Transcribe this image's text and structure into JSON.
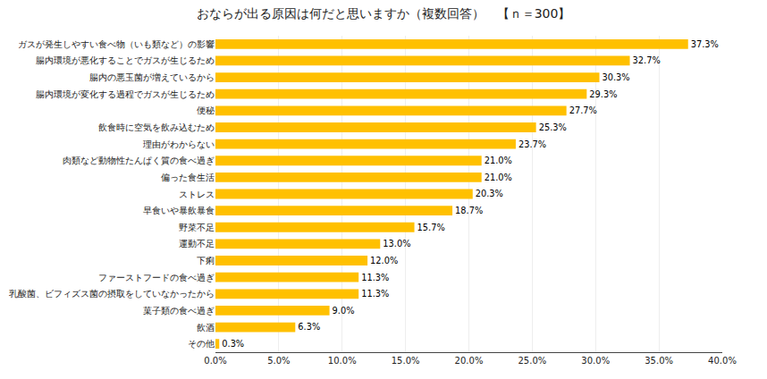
{
  "chart_data": {
    "type": "bar",
    "orientation": "horizontal",
    "title": "おならが出る原因は何だと思いますか（複数回答）　【ｎ＝300】",
    "categories": [
      "ガスが発生しやすい食べ物（いも類など）の影響",
      "腸内環境が悪化することでガスが生じるため",
      "腸内の悪玉菌が増えているから",
      "腸内環境が変化する過程でガスが生じるため",
      "便秘",
      "飲食時に空気を飲み込むため",
      "理由がわからない",
      "肉類など動物性たんぱく質の食べ過ぎ",
      "偏った食生活",
      "ストレス",
      "早食いや暴飲暴食",
      "野菜不足",
      "運動不足",
      "下痢",
      "ファーストフードの食べ過ぎ",
      "乳酸菌、ビフィズス菌の摂取をしていなかったから",
      "菓子類の食べ過ぎ",
      "飲酒",
      "その他"
    ],
    "values": [
      37.3,
      32.7,
      30.3,
      29.3,
      27.7,
      25.3,
      23.7,
      21.0,
      21.0,
      20.3,
      18.7,
      15.7,
      13.0,
      12.0,
      11.3,
      11.3,
      9.0,
      6.3,
      0.3
    ],
    "value_labels": [
      "37.3%",
      "32.7%",
      "30.3%",
      "29.3%",
      "27.7%",
      "25.3%",
      "23.7%",
      "21.0%",
      "21.0%",
      "20.3%",
      "18.7%",
      "15.7%",
      "13.0%",
      "12.0%",
      "11.3%",
      "11.3%",
      "9.0%",
      "6.3%",
      "0.3%"
    ],
    "data_labels": true,
    "color": "#FFC000",
    "xlim": [
      0,
      40
    ],
    "xticks": [
      {
        "value": 0,
        "label": "0.0%"
      },
      {
        "value": 5,
        "label": "5.0%"
      },
      {
        "value": 10,
        "label": "10.0%"
      },
      {
        "value": 15,
        "label": "15.0%"
      },
      {
        "value": 20,
        "label": "20.0%"
      },
      {
        "value": 25,
        "label": "25.0%"
      },
      {
        "value": 30,
        "label": "30.0%"
      },
      {
        "value": 35,
        "label": "35.0%"
      },
      {
        "value": 40,
        "label": "40.0%"
      }
    ],
    "grid": true
  }
}
